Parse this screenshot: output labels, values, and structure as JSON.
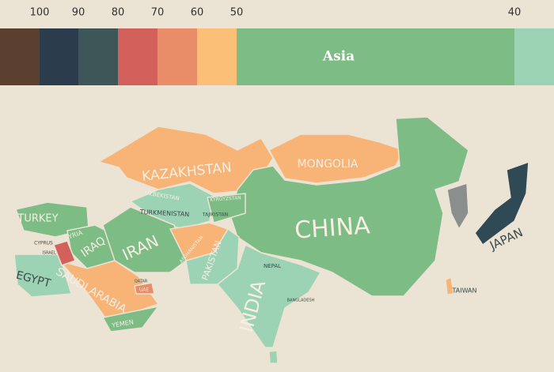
{
  "legend": {
    "ticks": [
      100,
      90,
      80,
      70,
      60,
      50,
      40
    ],
    "colors": [
      "#5b3f2f",
      "#2b3d4c",
      "#3f5659",
      "#d3615b",
      "#e98d68",
      "#fbbf77",
      "#7dbc85",
      "#9cd3b4"
    ],
    "label": "Asia"
  },
  "map": {
    "labels": [
      "KAZAKHSTAN",
      "UZBEKISTAN",
      "TURKMENISTAN",
      "KYRGYZSTAN",
      "TAJIKISTAN",
      "MONGOLIA",
      "CHINA",
      "TURKEY",
      "CYPRUS",
      "ISRAEL",
      "SYRIA",
      "IRAQ",
      "IRAN",
      "EGYPT",
      "SAUDI ARABIA",
      "QATAR",
      "UAE",
      "YEMEN",
      "AFGHANISTAN",
      "PAKISTAN",
      "NEPAL",
      "INDIA",
      "BANGLADESH",
      "TAIWAN",
      "JAPAN"
    ]
  }
}
